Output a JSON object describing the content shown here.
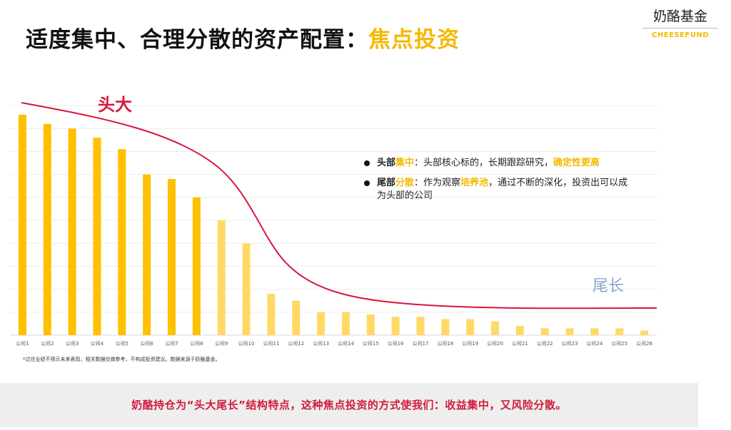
{
  "header": {
    "title_main": "适度集中、合理分散的资产配置：",
    "title_highlight": "焦点投资"
  },
  "brand": {
    "name_cn": "奶酪基金",
    "name_en": "CHEESEFUND"
  },
  "notes": [
    {
      "part1": "头部",
      "part2": "集中",
      "part3": "：头部核心标的，长期跟踪研究，",
      "part4": "确定性更高"
    },
    {
      "part1": "尾部",
      "part2": "分散",
      "part3": "：作为观察",
      "part4": "培养池",
      "part5": "，通过不断的深化，投资出可以成为头部的公司"
    }
  ],
  "disclaimer": "*过往业绩不预示未来表现，相关数据仅做参考，不构成投资建议。数据来源于奶酪基金。",
  "footer_text": "奶酪持仓为“头大尾长”结构特点，这种焦点投资的方式使我们：收益集中，又风险分散。",
  "colors": {
    "head_bar": "#ffc000",
    "tail_bar": "#ffd966",
    "curve": "#d6163d",
    "tail_label": "#8aa6cc",
    "accent": "#f5b800"
  },
  "chart_data": {
    "type": "bar",
    "categories": [
      "公司1",
      "公司2",
      "公司3",
      "公司4",
      "公司5",
      "公司6",
      "公司7",
      "公司8",
      "公司9",
      "公司10",
      "公司11",
      "公司12",
      "公司13",
      "公司14",
      "公司15",
      "公司16",
      "公司17",
      "公司18",
      "公司19",
      "公司20",
      "公司21",
      "公司22",
      "公司23",
      "公司24",
      "公司25",
      "公司26"
    ],
    "values": [
      9.6,
      9.2,
      9.0,
      8.6,
      8.1,
      7.0,
      6.8,
      6.0,
      5.0,
      4.0,
      1.8,
      1.5,
      1.0,
      1.0,
      0.9,
      0.8,
      0.8,
      0.7,
      0.7,
      0.6,
      0.4,
      0.3,
      0.3,
      0.3,
      0.3,
      0.2
    ],
    "head_count": 8,
    "ylim": [
      0,
      10
    ],
    "grid": true,
    "annotations": {
      "head_label": "头大",
      "tail_label": "尾长"
    }
  }
}
